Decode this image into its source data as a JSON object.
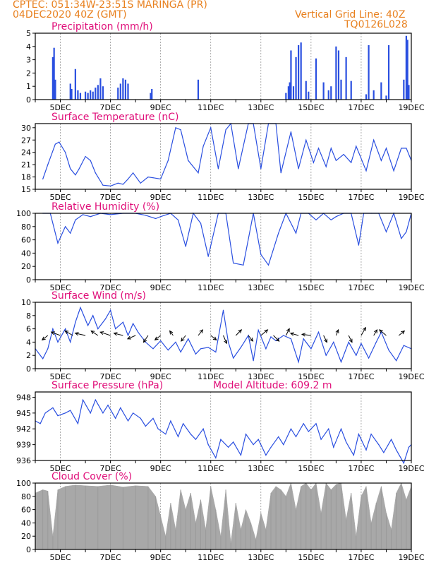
{
  "header": {
    "line1_left": "CPTEC:   051:34W-23:51S   MARINGA (PR)",
    "line2_left": "04DEC2020 40Z (GMT)",
    "line1_right": "Vertical Grid Line: 40Z",
    "line2_right": "TQ0126L028"
  },
  "colors": {
    "header": "#e8801e",
    "title": "#e0107a",
    "series": "#2a4fe0",
    "cloud": "#a8a8a8",
    "grid": "#888888",
    "frame": "#000000"
  },
  "x_axis": {
    "tick_labels": [
      "5DEC",
      "7DEC",
      "9DEC",
      "11DEC",
      "13DEC",
      "15DEC",
      "17DEC",
      "19DEC"
    ],
    "tick_days": [
      5,
      7,
      9,
      11,
      13,
      15,
      17,
      19
    ],
    "x_range_days": [
      4.0,
      19.0
    ]
  },
  "chart_data": [
    {
      "type": "bar",
      "title": "Precipitation (mm/h)",
      "ylim": [
        0,
        5
      ],
      "yticks": [
        "0",
        "1",
        "2",
        "3",
        "4",
        "5"
      ],
      "x_days": [
        4.7,
        4.75,
        4.8,
        5.4,
        5.45,
        5.6,
        5.7,
        5.8,
        6.0,
        6.1,
        6.2,
        6.3,
        6.4,
        6.5,
        6.6,
        6.7,
        7.3,
        7.4,
        7.5,
        7.6,
        7.7,
        8.6,
        8.65,
        10.5,
        14.0,
        14.1,
        14.15,
        14.2,
        14.3,
        14.4,
        14.5,
        14.6,
        14.8,
        14.9,
        15.2,
        15.5,
        15.7,
        15.8,
        16.0,
        16.1,
        16.2,
        16.4,
        16.6,
        17.2,
        17.3,
        17.5,
        17.8,
        18.0,
        18.1,
        18.7,
        18.8,
        18.85,
        18.9
      ],
      "values": [
        3.2,
        3.9,
        1.5,
        1.2,
        0.8,
        2.3,
        0.7,
        0.5,
        0.6,
        0.5,
        0.7,
        0.6,
        0.9,
        1.1,
        1.6,
        1.0,
        0.9,
        1.2,
        1.6,
        1.5,
        1.2,
        0.5,
        0.8,
        1.5,
        0.5,
        1.0,
        1.3,
        3.7,
        1.0,
        3.2,
        4.1,
        4.3,
        1.4,
        0.6,
        3.1,
        1.3,
        0.7,
        1.0,
        4.0,
        3.7,
        1.5,
        3.2,
        1.4,
        0.4,
        4.1,
        0.7,
        1.3,
        0.3,
        4.1,
        1.5,
        4.8,
        4.5,
        1.1
      ]
    },
    {
      "type": "line",
      "title": "Surface Temperature (nC)",
      "ylim": [
        15,
        31
      ],
      "yticks": [
        "15",
        "18",
        "21",
        "24",
        "27",
        "30"
      ],
      "x": [
        4.3,
        4.5,
        4.8,
        4.95,
        5.2,
        5.4,
        5.6,
        5.75,
        6.0,
        6.2,
        6.4,
        6.7,
        7.0,
        7.3,
        7.5,
        7.7,
        7.9,
        8.2,
        8.5,
        8.7,
        9.0,
        9.3,
        9.6,
        9.8,
        10.1,
        10.5,
        10.7,
        11.0,
        11.3,
        11.6,
        11.8,
        12.1,
        12.5,
        12.7,
        13.0,
        13.3,
        13.6,
        13.8,
        14.2,
        14.5,
        14.8,
        15.1,
        15.3,
        15.6,
        15.8,
        16.0,
        16.3,
        16.6,
        16.8,
        17.2,
        17.5,
        17.8,
        18.0,
        18.3,
        18.6,
        18.8,
        19.0
      ],
      "values": [
        17.5,
        21,
        26,
        26.5,
        24,
        20,
        18.5,
        20,
        23,
        22,
        19,
        16,
        15.8,
        16.5,
        16.2,
        17.5,
        19,
        16.5,
        18,
        17.8,
        17.5,
        22,
        30,
        29.5,
        22,
        19,
        25.5,
        30,
        20,
        29.5,
        31,
        20,
        31,
        31,
        20,
        31,
        31,
        19,
        29,
        20,
        27,
        21.5,
        25,
        20.5,
        25,
        22,
        23.5,
        21.5,
        25.5,
        19.5,
        27,
        22,
        25,
        19.5,
        25,
        25,
        22
      ]
    },
    {
      "type": "line",
      "title": "Relative Humidity (%)",
      "ylim": [
        0,
        100
      ],
      "yticks": [
        "0",
        "20",
        "40",
        "60",
        "80",
        "100"
      ],
      "x": [
        4.3,
        4.6,
        4.9,
        5.2,
        5.4,
        5.6,
        5.9,
        6.2,
        6.6,
        7.0,
        7.5,
        8.0,
        8.4,
        8.8,
        9.0,
        9.4,
        9.7,
        10.0,
        10.3,
        10.6,
        10.9,
        11.3,
        11.6,
        11.9,
        12.3,
        12.7,
        13.0,
        13.3,
        13.7,
        14.0,
        14.4,
        14.6,
        14.9,
        15.2,
        15.5,
        15.8,
        16.0,
        16.3,
        16.6,
        16.9,
        17.1,
        17.4,
        17.7,
        18.0,
        18.3,
        18.6,
        18.8,
        19.0
      ],
      "values": [
        100,
        100,
        55,
        80,
        70,
        90,
        98,
        95,
        100,
        98,
        100,
        100,
        97,
        92,
        95,
        100,
        90,
        50,
        100,
        85,
        35,
        100,
        100,
        25,
        22,
        100,
        38,
        22,
        70,
        100,
        70,
        100,
        100,
        90,
        100,
        90,
        95,
        100,
        100,
        52,
        100,
        100,
        100,
        72,
        100,
        62,
        72,
        100
      ]
    },
    {
      "type": "line",
      "title": "Surface Wind (m/s)",
      "ylim": [
        0,
        10
      ],
      "yticks": [
        "0",
        "2",
        "4",
        "6",
        "8",
        "10"
      ],
      "x": [
        4.0,
        4.3,
        4.5,
        4.7,
        4.9,
        5.2,
        5.4,
        5.6,
        5.8,
        6.1,
        6.3,
        6.5,
        6.8,
        7.0,
        7.2,
        7.5,
        7.7,
        7.9,
        8.1,
        8.4,
        8.7,
        9.0,
        9.3,
        9.6,
        9.8,
        10.1,
        10.4,
        10.6,
        10.9,
        11.2,
        11.5,
        11.7,
        11.9,
        12.2,
        12.5,
        12.7,
        12.9,
        13.2,
        13.4,
        13.6,
        13.9,
        14.2,
        14.5,
        14.7,
        15.0,
        15.3,
        15.6,
        15.9,
        16.2,
        16.5,
        16.8,
        17.0,
        17.3,
        17.6,
        17.8,
        18.1,
        18.4,
        18.7,
        19.0
      ],
      "values": [
        3,
        1.5,
        3,
        6,
        4,
        6,
        4,
        7,
        9.2,
        6.5,
        8,
        6,
        7.5,
        8.8,
        6,
        7,
        5,
        6.8,
        5.5,
        4,
        3,
        4.2,
        2.8,
        4,
        2.5,
        4.5,
        2.2,
        3,
        3.2,
        2.5,
        8.8,
        4,
        1.6,
        3.2,
        5,
        1.2,
        5.8,
        3,
        4.8,
        4.2,
        5,
        4.5,
        1,
        4.5,
        3,
        5.5,
        2,
        4,
        1,
        4,
        2,
        3.8,
        1.6,
        4,
        5.5,
        2.8,
        1.2,
        3.5,
        3
      ],
      "arrows_day": [
        4.5,
        5.0,
        5.5,
        6.0,
        6.5,
        7.0,
        7.5,
        8.0,
        8.5,
        9.0,
        9.5,
        10.0,
        10.5,
        11.0,
        11.5,
        12.0,
        12.5,
        13.0,
        13.5,
        14.0,
        14.5,
        15.0,
        15.5,
        16.0,
        16.5,
        17.0,
        17.5,
        18.0,
        18.5
      ],
      "arrows_u": [
        -0.5,
        -0.8,
        -0.7,
        -0.9,
        -0.6,
        -0.9,
        -0.8,
        -0.7,
        -0.4,
        -0.5,
        -0.3,
        -0.4,
        0.4,
        0.5,
        0.3,
        0.5,
        0.4,
        0.6,
        0.5,
        0.3,
        -0.7,
        -0.8,
        0.3,
        0.2,
        0.3,
        0.4,
        0.3,
        -0.6,
        0.5
      ],
      "arrows_v": [
        -0.4,
        0.3,
        0.4,
        0.2,
        0.4,
        0.3,
        0.2,
        -0.3,
        -0.6,
        -0.4,
        0.4,
        -0.5,
        0.5,
        -0.4,
        -0.7,
        0.5,
        -0.5,
        0.5,
        -0.5,
        0.6,
        0.2,
        0.1,
        -0.6,
        0.5,
        -0.6,
        0.7,
        0.5,
        0.5,
        0.4
      ]
    },
    {
      "type": "line",
      "title": "Surface Pressure (hPa)",
      "annotation": "Model Altitude: 609.2 m",
      "ylim": [
        936,
        949
      ],
      "yticks": [
        "936",
        "939",
        "942",
        "945",
        "948"
      ],
      "x": [
        4.0,
        4.2,
        4.4,
        4.7,
        4.9,
        5.2,
        5.4,
        5.7,
        5.9,
        6.2,
        6.4,
        6.7,
        6.9,
        7.2,
        7.4,
        7.7,
        7.9,
        8.2,
        8.4,
        8.7,
        8.9,
        9.2,
        9.4,
        9.7,
        9.9,
        10.2,
        10.4,
        10.7,
        10.9,
        11.2,
        11.4,
        11.7,
        11.9,
        12.2,
        12.4,
        12.7,
        12.9,
        13.2,
        13.4,
        13.7,
        13.9,
        14.2,
        14.4,
        14.7,
        14.9,
        15.2,
        15.4,
        15.7,
        15.9,
        16.2,
        16.4,
        16.7,
        16.9,
        17.2,
        17.4,
        17.7,
        17.9,
        18.2,
        18.4,
        18.7,
        18.9,
        19.0
      ],
      "values": [
        943.5,
        943,
        945,
        946,
        944.5,
        945,
        945.5,
        943,
        947.5,
        945,
        947.5,
        945,
        946.5,
        944,
        946,
        943.5,
        945,
        944,
        942.5,
        944,
        942,
        941,
        943.5,
        940.5,
        943,
        941,
        940,
        942,
        939,
        936.5,
        940,
        938.5,
        939.5,
        937,
        941,
        939,
        940,
        937,
        938.5,
        940.5,
        939,
        942,
        940.5,
        943,
        941.5,
        943,
        940,
        942,
        938.5,
        942,
        939.5,
        937,
        941,
        938,
        941,
        939,
        937.5,
        940,
        938,
        935.5,
        938.5,
        939
      ]
    },
    {
      "type": "area",
      "title": "Cloud Cover (%)",
      "ylim": [
        0,
        100
      ],
      "yticks": [
        "0",
        "20",
        "40",
        "60",
        "80",
        "100"
      ],
      "x": [
        4.0,
        4.3,
        4.5,
        4.7,
        4.9,
        5.2,
        5.6,
        6.0,
        6.5,
        7.0,
        7.5,
        8.0,
        8.5,
        8.8,
        9.0,
        9.2,
        9.4,
        9.6,
        9.8,
        10.0,
        10.2,
        10.4,
        10.6,
        10.8,
        11.0,
        11.2,
        11.4,
        11.6,
        11.8,
        12.0,
        12.2,
        12.4,
        12.6,
        12.8,
        13.0,
        13.2,
        13.4,
        13.6,
        13.8,
        14.0,
        14.2,
        14.4,
        14.6,
        14.8,
        15.0,
        15.2,
        15.4,
        15.6,
        15.8,
        16.0,
        16.2,
        16.4,
        16.6,
        16.8,
        17.0,
        17.2,
        17.4,
        17.6,
        17.8,
        18.0,
        18.2,
        18.4,
        18.6,
        18.8,
        19.0
      ],
      "values": [
        85,
        90,
        88,
        20,
        90,
        95,
        97,
        96,
        95,
        97,
        94,
        96,
        95,
        80,
        50,
        20,
        70,
        30,
        90,
        60,
        85,
        40,
        75,
        30,
        95,
        60,
        20,
        90,
        10,
        70,
        30,
        60,
        40,
        15,
        55,
        30,
        85,
        95,
        90,
        80,
        100,
        60,
        95,
        100,
        90,
        100,
        55,
        100,
        90,
        98,
        100,
        45,
        85,
        20,
        80,
        95,
        40,
        70,
        95,
        55,
        30,
        85,
        100,
        75,
        95
      ]
    }
  ]
}
